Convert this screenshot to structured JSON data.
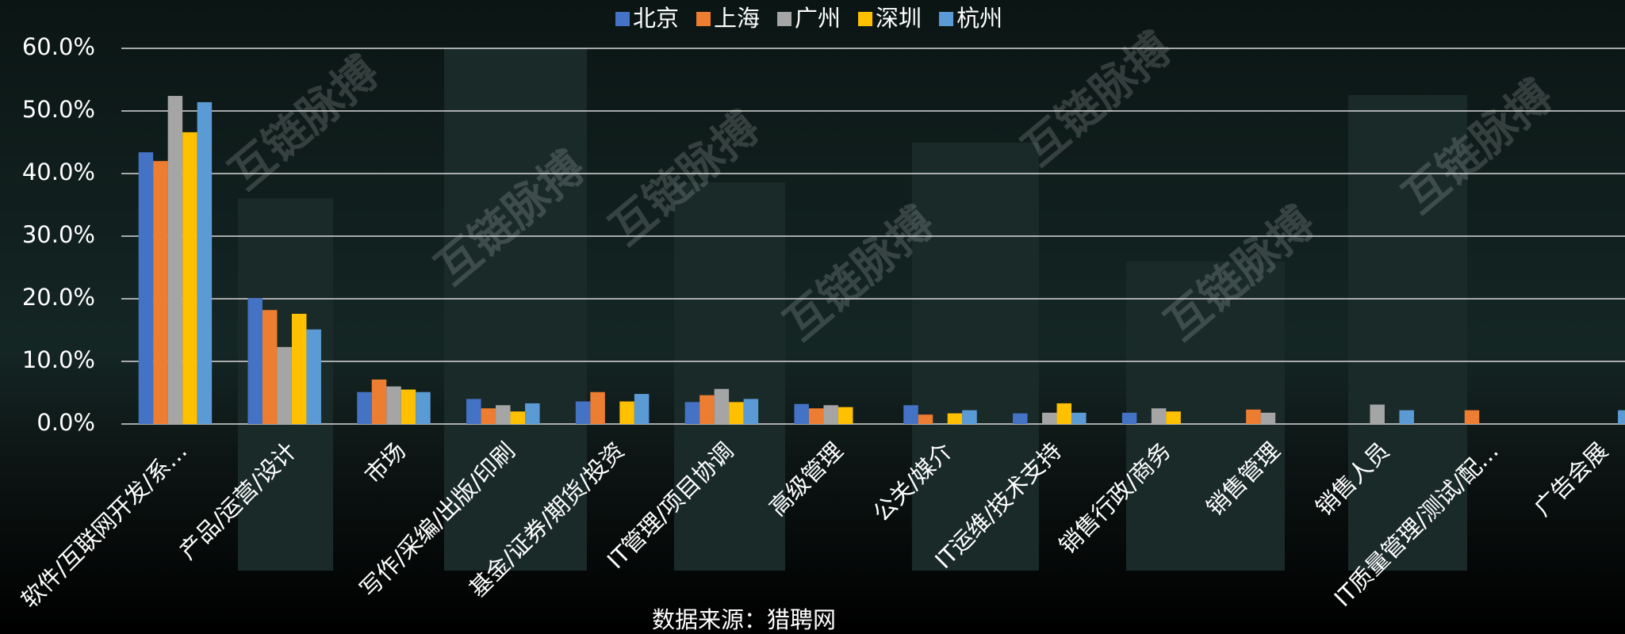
{
  "chart_data": {
    "type": "bar",
    "categories": [
      "软件/互联网开发/系…",
      "产品/运营/设计",
      "市场",
      "写作/采编/出版/印刷",
      "基金/证券/期货/投资",
      "IT管理/项目协调",
      "高级管理",
      "公关/媒介",
      "IT运维/技术支持",
      "销售行政/商务",
      "销售管理",
      "销售人员",
      "IT质量管理/测试/配…",
      "广告会展"
    ],
    "series": [
      {
        "name": "北京",
        "color": "#4472c4",
        "values": [
          43.4,
          20.1,
          5.1,
          4.0,
          3.6,
          3.5,
          3.2,
          3.0,
          1.7,
          1.8,
          null,
          null,
          null,
          null
        ]
      },
      {
        "name": "上海",
        "color": "#ed7d31",
        "values": [
          42.0,
          18.2,
          7.1,
          2.5,
          5.1,
          4.6,
          2.5,
          1.5,
          null,
          null,
          2.3,
          null,
          2.2,
          null
        ]
      },
      {
        "name": "广州",
        "color": "#a5a5a5",
        "values": [
          52.4,
          12.3,
          6.0,
          3.0,
          null,
          5.6,
          3.0,
          null,
          1.8,
          2.5,
          1.8,
          3.1,
          null,
          null
        ]
      },
      {
        "name": "深圳",
        "color": "#ffc000",
        "values": [
          46.6,
          17.6,
          5.5,
          2.0,
          3.6,
          3.5,
          2.7,
          1.7,
          3.3,
          2.0,
          null,
          null,
          null,
          null
        ]
      },
      {
        "name": "杭州",
        "color": "#5b9bd5",
        "values": [
          51.4,
          15.1,
          5.1,
          3.3,
          4.8,
          4.0,
          null,
          2.2,
          1.8,
          null,
          null,
          2.2,
          null,
          2.2
        ]
      }
    ],
    "ylim": [
      0,
      60
    ],
    "yticks": [
      {
        "value": 0,
        "label": "0.0%"
      },
      {
        "value": 10,
        "label": "10.0%"
      },
      {
        "value": 20,
        "label": "20.0%"
      },
      {
        "value": 30,
        "label": "30.0%"
      },
      {
        "value": 40,
        "label": "40.0%"
      },
      {
        "value": 50,
        "label": "50.0%"
      },
      {
        "value": 60,
        "label": "60.0%"
      }
    ],
    "grid": true,
    "legend": "top",
    "source": "数据来源：猎聘网",
    "watermark": "互链脉搏"
  }
}
